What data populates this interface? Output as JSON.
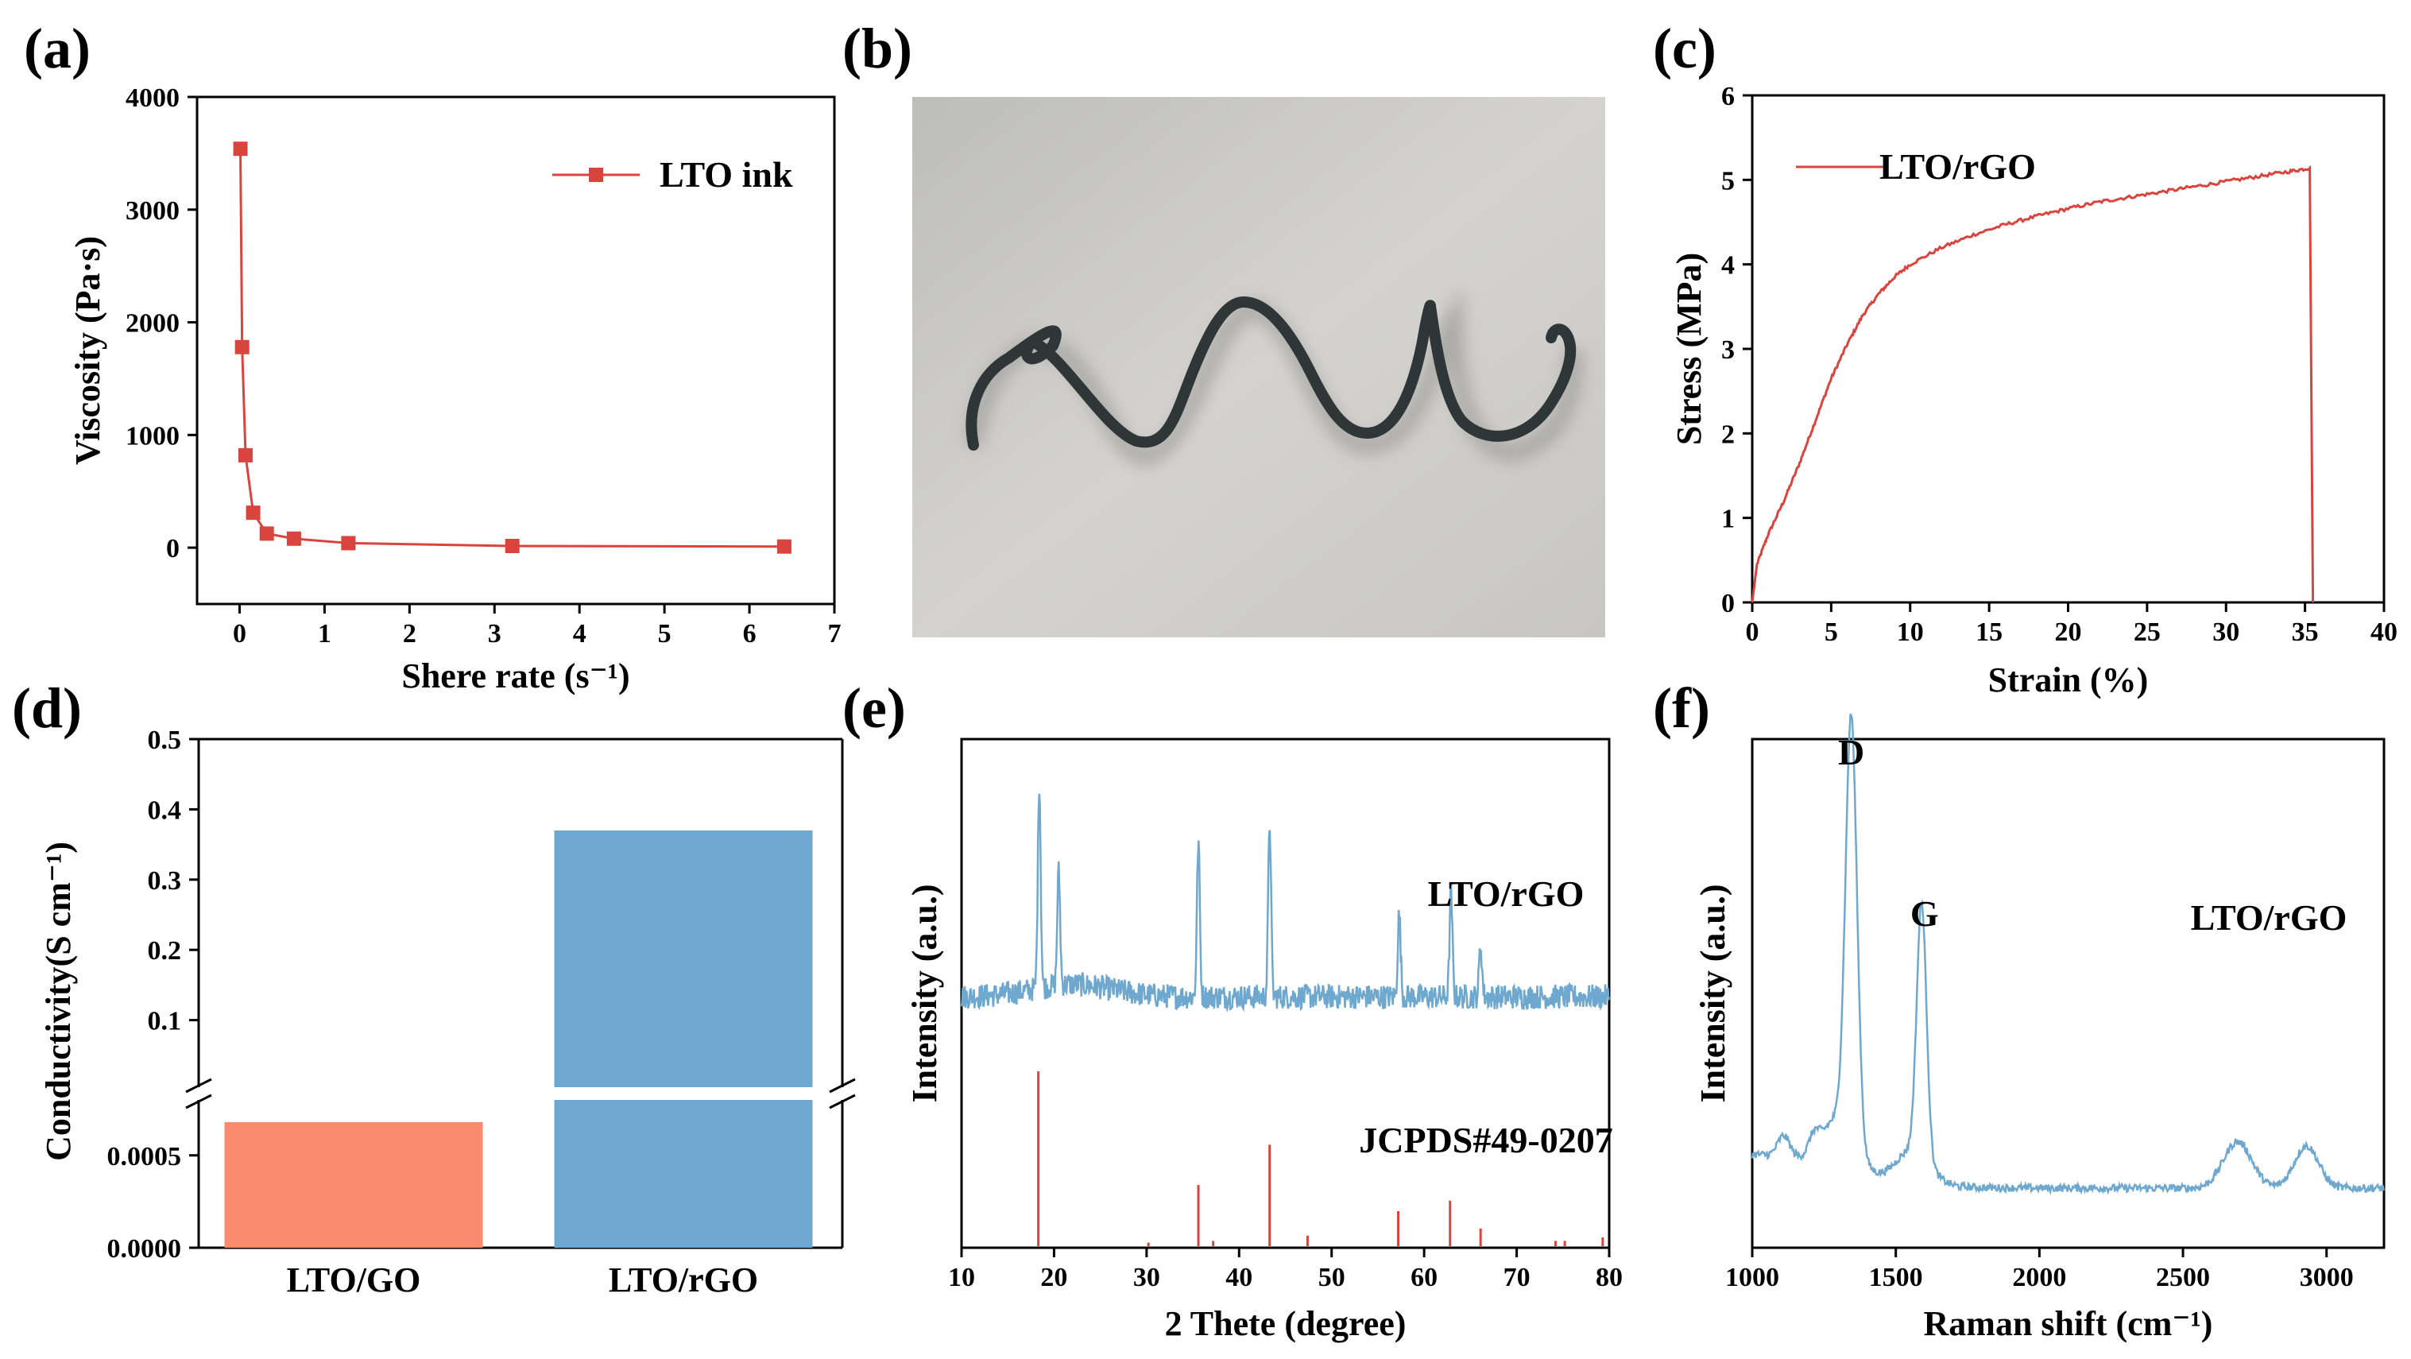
{
  "panels": {
    "a": "(a)",
    "b": "(b)",
    "c": "(c)",
    "d": "(d)",
    "e": "(e)",
    "f": "(f)"
  },
  "colors": {
    "red": "#d9453e",
    "blue": "#6fa8cf",
    "salmon": "#fa8a6e"
  },
  "chart_data": [
    {
      "id": "a",
      "type": "line",
      "xlabel": "Shere rate (s⁻¹)",
      "ylabel": "Viscosity (Pa·s)",
      "xlim": [
        -0.5,
        7
      ],
      "ylim": [
        -500,
        4000
      ],
      "xticks": [
        0,
        1,
        2,
        3,
        4,
        5,
        6,
        7
      ],
      "yticks": [
        0,
        1000,
        2000,
        3000,
        4000
      ],
      "series": [
        {
          "name": "LTO ink",
          "x": [
            0.01,
            0.03,
            0.07,
            0.16,
            0.32,
            0.64,
            1.28,
            3.21,
            6.41
          ],
          "y": [
            3540,
            1780,
            820,
            310,
            125,
            80,
            40,
            15,
            10
          ]
        }
      ],
      "legend": "top-right",
      "marker": "square"
    },
    {
      "id": "c",
      "type": "line",
      "xlabel": "Strain (%)",
      "ylabel": "Stress (MPa)",
      "xlim": [
        0,
        40
      ],
      "ylim": [
        0,
        6
      ],
      "xticks": [
        0,
        5,
        10,
        15,
        20,
        25,
        30,
        35,
        40
      ],
      "yticks": [
        0,
        1,
        2,
        3,
        4,
        5,
        6
      ],
      "series": [
        {
          "name": "LTO/rGO",
          "x": [
            0,
            0.3,
            1,
            2,
            3,
            4,
            5,
            6,
            7,
            8,
            9,
            10,
            12,
            14,
            16,
            18,
            20,
            22,
            24,
            26,
            28,
            30,
            32,
            34,
            35.3,
            35.4,
            35.5
          ],
          "y": [
            0,
            0.45,
            0.8,
            1.2,
            1.65,
            2.15,
            2.65,
            3.05,
            3.4,
            3.65,
            3.85,
            4.0,
            4.2,
            4.35,
            4.47,
            4.57,
            4.66,
            4.74,
            4.8,
            4.86,
            4.92,
            4.98,
            5.04,
            5.1,
            5.14,
            2.5,
            0
          ]
        }
      ],
      "legend": "top-left"
    },
    {
      "id": "d",
      "type": "bar",
      "categories": [
        "LTO/GO",
        "LTO/rGO"
      ],
      "ylabel": "Conductivity(S cm⁻¹)",
      "y_break": true,
      "lower_ylim": [
        0,
        0.0008
      ],
      "lower_yticks": [
        "0.0000",
        "0.0005"
      ],
      "lower_tick_values": [
        0,
        0.0005
      ],
      "upper_ylim": [
        0,
        0.5
      ],
      "upper_yticks": [
        "0.1",
        "0.2",
        "0.3",
        "0.4",
        "0.5"
      ],
      "upper_tick_values": [
        0.1,
        0.2,
        0.3,
        0.4,
        0.5
      ],
      "values": [
        0.00068,
        0.37
      ]
    },
    {
      "id": "e",
      "type": "line",
      "xlabel": "2 Thete (degree)",
      "ylabel": "Intensity (a.u.)",
      "xlim": [
        10,
        80
      ],
      "xticks": [
        10,
        20,
        30,
        40,
        50,
        60,
        70,
        80
      ],
      "series": [
        {
          "name": "LTO/rGO",
          "peaks": [
            [
              18.4,
              1.0
            ],
            [
              20.5,
              0.55
            ],
            [
              35.6,
              0.75
            ],
            [
              43.3,
              0.85
            ],
            [
              57.3,
              0.4
            ],
            [
              62.9,
              0.5
            ],
            [
              66.1,
              0.25
            ]
          ]
        },
        {
          "name": "JCPDS#49-0207",
          "sticks": [
            [
              18.3,
              1.0
            ],
            [
              30.2,
              0.02
            ],
            [
              35.6,
              0.35
            ],
            [
              37.2,
              0.03
            ],
            [
              43.3,
              0.58
            ],
            [
              47.4,
              0.06
            ],
            [
              57.2,
              0.2
            ],
            [
              62.8,
              0.26
            ],
            [
              66.1,
              0.1
            ],
            [
              74.2,
              0.03
            ],
            [
              75.2,
              0.03
            ],
            [
              79.3,
              0.05
            ]
          ]
        }
      ]
    },
    {
      "id": "f",
      "type": "line",
      "xlabel": "Raman shift (cm⁻¹)",
      "ylabel": "Intensity (a.u.)",
      "xlim": [
        1000,
        3200
      ],
      "xticks": [
        1000,
        1500,
        2000,
        2500,
        3000
      ],
      "series": [
        {
          "name": "LTO/rGO",
          "peaks": [
            [
              1345,
              1.0
            ],
            [
              1590,
              0.6
            ],
            [
              2690,
              0.12
            ],
            [
              2930,
              0.1
            ],
            [
              1100,
              0.05
            ]
          ]
        }
      ],
      "annotations": [
        "D",
        "G"
      ]
    }
  ],
  "labels": {
    "a_tick_zero": "0",
    "d_cat0": "LTO/GO",
    "d_cat1": "LTO/rGO",
    "e_label_top": "LTO/rGO",
    "e_label_bottom": "JCPDS#49-0207",
    "f_label": "LTO/rGO",
    "f_D": "D",
    "f_G": "G"
  }
}
